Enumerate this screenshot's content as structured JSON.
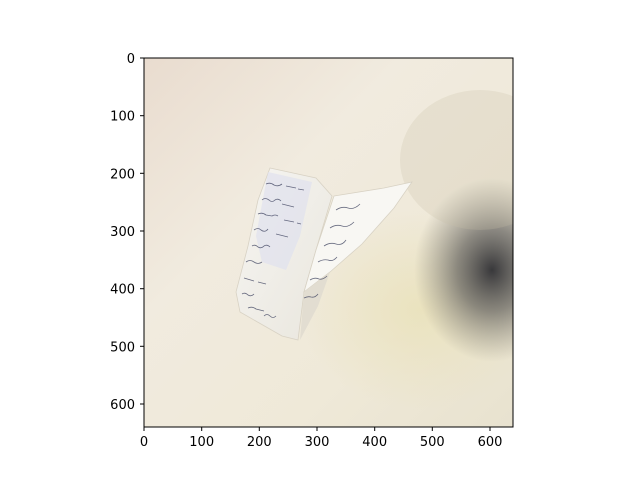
{
  "figure": {
    "x_ticks": [
      "0",
      "100",
      "200",
      "300",
      "400",
      "500",
      "600"
    ],
    "y_ticks": [
      "0",
      "100",
      "200",
      "300",
      "400",
      "500",
      "600"
    ],
    "image": {
      "subject": "photo",
      "colors": {
        "background": "#ebe3d6",
        "paper": "#f4f1ea",
        "ink": "#3a3f5c",
        "shadow": "#4b4a4a"
      }
    }
  }
}
